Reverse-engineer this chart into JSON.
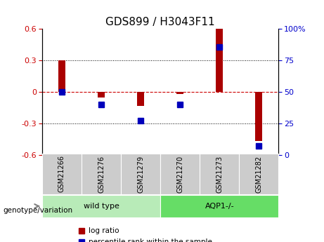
{
  "title": "GDS899 / H3043F11",
  "categories": [
    "GSM21266",
    "GSM21276",
    "GSM21279",
    "GSM21270",
    "GSM21273",
    "GSM21282"
  ],
  "log_ratio": [
    0.3,
    -0.05,
    -0.13,
    -0.02,
    0.6,
    -0.47
  ],
  "percentile_rank": [
    50,
    40,
    27,
    40,
    86,
    7
  ],
  "groups": [
    {
      "label": "wild type",
      "indices": [
        0,
        1,
        2
      ],
      "color": "#b8ebb8"
    },
    {
      "label": "AQP1-/-",
      "indices": [
        3,
        4,
        5
      ],
      "color": "#66dd66"
    }
  ],
  "ylim_left": [
    -0.6,
    0.6
  ],
  "ylim_right": [
    0,
    100
  ],
  "yticks_left": [
    -0.6,
    -0.3,
    0.0,
    0.3,
    0.6
  ],
  "yticks_right": [
    0,
    25,
    50,
    75,
    100
  ],
  "bar_color": "#aa0000",
  "percentile_color": "#0000bb",
  "bar_width": 0.18,
  "percentile_marker_size": 6,
  "zero_line_color": "#cc0000",
  "bg_color": "#ffffff",
  "plot_bg_color": "#ffffff",
  "label_log_ratio": "log ratio",
  "label_percentile": "percentile rank within the sample",
  "genotype_label": "genotype/variation",
  "group_box_color": "#cccccc",
  "title_fontsize": 11,
  "tick_fontsize": 8,
  "cat_fontsize": 7,
  "group_fontsize": 8,
  "legend_fontsize": 7.5
}
